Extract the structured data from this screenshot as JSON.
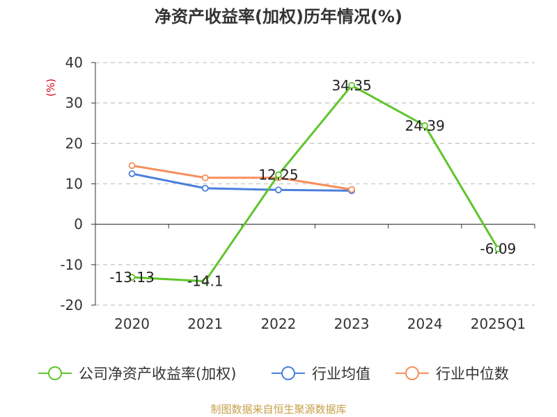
{
  "chart_data": {
    "type": "line",
    "title": "净资产收益率(加权)历年情况(%)",
    "unit_label": "(%)",
    "categories": [
      "2020",
      "2021",
      "2022",
      "2023",
      "2024",
      "2025Q1"
    ],
    "ylim": [
      -20,
      40
    ],
    "yticks": [
      -20,
      -10,
      0,
      10,
      20,
      30,
      40
    ],
    "grid": true,
    "legend_position": "bottom",
    "series": [
      {
        "name": "公司净资产收益率(加权)",
        "color": "#5fc42b",
        "values": [
          -13.13,
          -14.1,
          12.25,
          34.35,
          24.39,
          -6.09
        ],
        "labels": [
          "-13.13",
          "-14.1",
          "12.25",
          "34.35",
          "24.39",
          "-6.09"
        ]
      },
      {
        "name": "行业均值",
        "color": "#4a7fdc",
        "values": [
          12.5,
          8.9,
          8.5,
          8.3,
          null,
          null
        ]
      },
      {
        "name": "行业中位数",
        "color": "#f58e5b",
        "values": [
          14.5,
          11.5,
          11.5,
          8.6,
          null,
          null
        ]
      }
    ]
  },
  "source_note": "制图数据来自恒生聚源数据库"
}
